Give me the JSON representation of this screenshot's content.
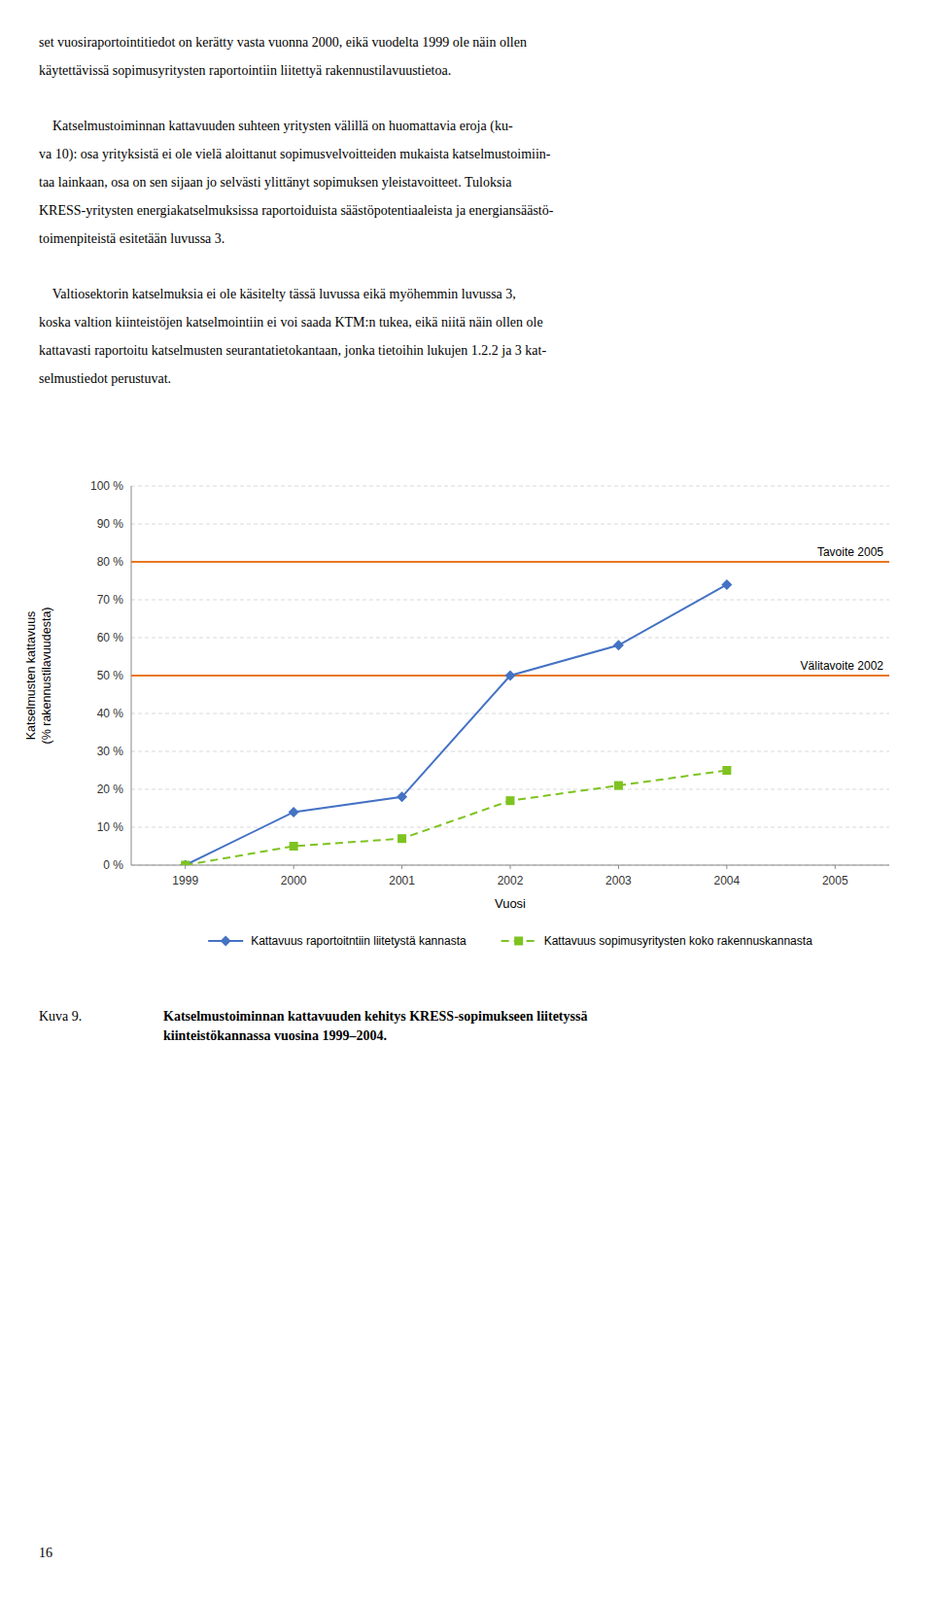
{
  "paragraphs": [
    [
      "set vuosiraportointitiedot on kerätty vasta vuonna 2000, eikä vuodelta 1999 ole näin ollen",
      "käytettävissä sopimusyritysten raportointiin liitettyä rakennustilavuustietoa."
    ],
    [
      "    Katselmustoiminnan kattavuuden suhteen yritysten välillä on huomattavia eroja (ku-",
      "va 10): osa yrityksistä ei ole vielä aloittanut sopimusvelvoitteiden mukaista katselmustoimiin-",
      "taa lainkaan, osa on sen sijaan jo selvästi ylittänyt sopimuksen yleistavoitteet. Tuloksia",
      "KRESS-yritysten energiakatselmuksissa raportoiduista säästöpotentiaaleista ja energiansäästö-",
      "toimenpiteistä esitetään luvussa 3."
    ],
    [
      "    Valtiosektorin katselmuksia ei ole käsitelty tässä luvussa eikä myöhemmin luvussa 3,",
      "koska valtion kiinteistöjen katselmointiin ei voi saada KTM:n tukea, eikä niitä näin ollen ole",
      "kattavasti raportoitu katselmusten seurantatietokantaan, jonka tietoihin lukujen 1.2.2 ja 3 kat-",
      "selmustiedot perustuvat."
    ]
  ],
  "caption": {
    "label": "Kuva 9.",
    "text": "Katselmustoiminnan kattavuuden kehitys KRESS-sopimukseen liitetyssä\nkiinteistökannassa vuosina 1999–2004."
  },
  "page_number": "16",
  "chart_data": {
    "type": "line",
    "x": [
      1999,
      2000,
      2001,
      2002,
      2003,
      2004
    ],
    "series": [
      {
        "name": "Kattavuus raportoitntiin liitetystä kannasta",
        "color": "#4472C4",
        "marker": "diamond",
        "line_style": "solid",
        "values": [
          0,
          14,
          18,
          50,
          58,
          74
        ]
      },
      {
        "name": "Kattavuus sopimusyritysten koko rakennuskannasta",
        "color": "#7EC320",
        "marker": "square",
        "line_style": "dashed",
        "values": [
          0,
          5,
          7,
          17,
          21,
          25
        ]
      }
    ],
    "annotations": [
      {
        "text": "Tavoite 2005",
        "y": 80,
        "color": "#E87722"
      },
      {
        "text": "Välitavoite 2002",
        "y": 50,
        "color": "#E87722"
      }
    ],
    "x_label": "Vuosi",
    "y_label": "Katselmusten kattavuus\n(% rakennustilavuudesta)",
    "xlim": [
      1998.5,
      2005.5
    ],
    "ylim": [
      0,
      100
    ],
    "xticks": [
      1999,
      2000,
      2001,
      2002,
      2003,
      2004,
      2005
    ],
    "yticks": [
      {
        "value": 0,
        "label": "0 %"
      },
      {
        "value": 10,
        "label": "10 %"
      },
      {
        "value": 20,
        "label": "20 %"
      },
      {
        "value": 30,
        "label": "30 %"
      },
      {
        "value": 40,
        "label": "40 %"
      },
      {
        "value": 50,
        "label": "50 %"
      },
      {
        "value": 60,
        "label": "60 %"
      },
      {
        "value": 70,
        "label": "70 %"
      },
      {
        "value": 80,
        "label": "80 %"
      },
      {
        "value": 90,
        "label": "90 %"
      },
      {
        "value": 100,
        "label": "100 %"
      }
    ],
    "grid": true,
    "legend": "bottom"
  }
}
